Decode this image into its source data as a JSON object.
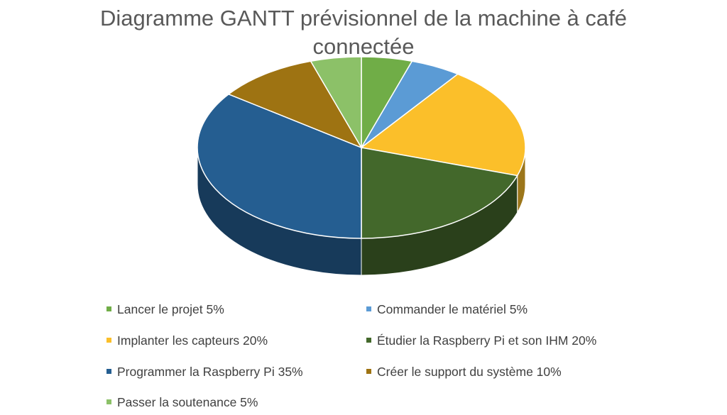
{
  "chart_data": {
    "type": "pie",
    "title": "Diagramme GANTT prévisionnel de la machine à café connectée",
    "series": [
      {
        "label": "Lancer le projet 5%",
        "value": 5,
        "color": "#70AD47"
      },
      {
        "label": "Commander le matériel 5%",
        "value": 5,
        "color": "#5B9BD5"
      },
      {
        "label": "Implanter les capteurs 20%",
        "value": 20,
        "color": "#FBBF2A"
      },
      {
        "label": "Étudier la Raspberry Pi et son IHM 20%",
        "value": 20,
        "color": "#43682B"
      },
      {
        "label": "Programmer la Raspberry Pi 35%",
        "value": 35,
        "color": "#255E91"
      },
      {
        "label": "Créer le support du système 10%",
        "value": 10,
        "color": "#9E7312"
      },
      {
        "label": "Passer la soutenance 5%",
        "value": 5,
        "color": "#8CC168"
      }
    ],
    "legend_position": "bottom",
    "three_d": true
  }
}
